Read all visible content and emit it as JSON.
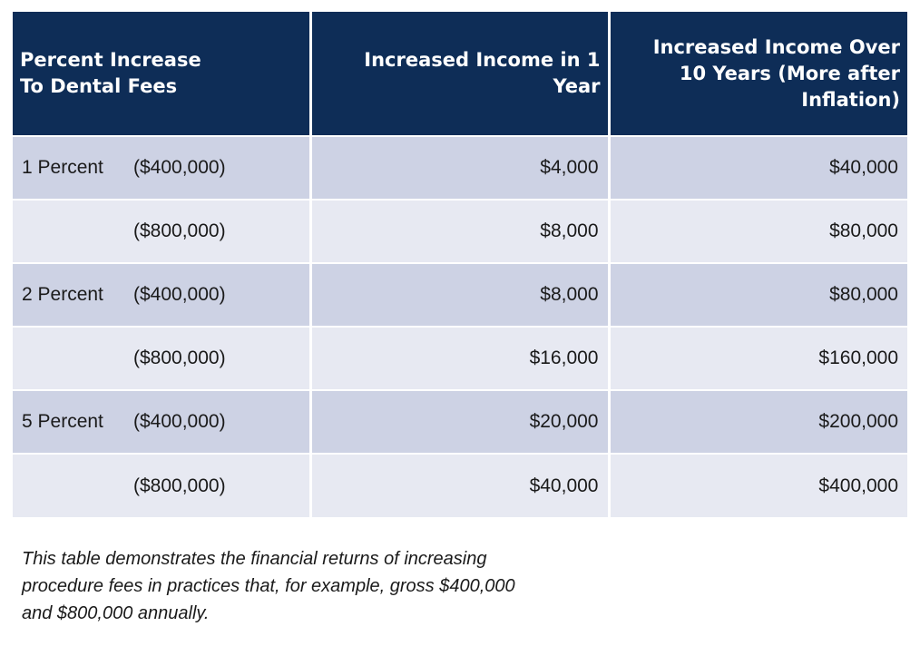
{
  "table": {
    "headers": [
      [
        "Percent Increase",
        "To Dental Fees"
      ],
      [
        "Increased Income in 1",
        "Year"
      ],
      [
        "Increased Income Over",
        "10 Years (More after",
        "Inflation)"
      ]
    ],
    "rows": [
      {
        "percent": "1 Percent",
        "gross": "($400,000)",
        "one_year": "$4,000",
        "ten_years": "$40,000"
      },
      {
        "percent": "",
        "gross": "($800,000)",
        "one_year": "$8,000",
        "ten_years": "$80,000"
      },
      {
        "percent": "2 Percent",
        "gross": "($400,000)",
        "one_year": "$8,000",
        "ten_years": "$80,000"
      },
      {
        "percent": "",
        "gross": "($800,000)",
        "one_year": "$16,000",
        "ten_years": "$160,000"
      },
      {
        "percent": "5 Percent",
        "gross": "($400,000)",
        "one_year": "$20,000",
        "ten_years": "$200,000"
      },
      {
        "percent": "",
        "gross": "($800,000)",
        "one_year": "$40,000",
        "ten_years": "$400,000"
      }
    ]
  },
  "caption": {
    "lines": [
      "This table demonstrates the financial returns of increasing",
      "procedure fees in practices that, for example, gross $400,000",
      "and $800,000 annually."
    ]
  },
  "colors": {
    "header_background": "#0e2d57",
    "header_text": "#ffffff",
    "row_dark": "#cdd2e4",
    "row_light": "#e7e9f2"
  }
}
